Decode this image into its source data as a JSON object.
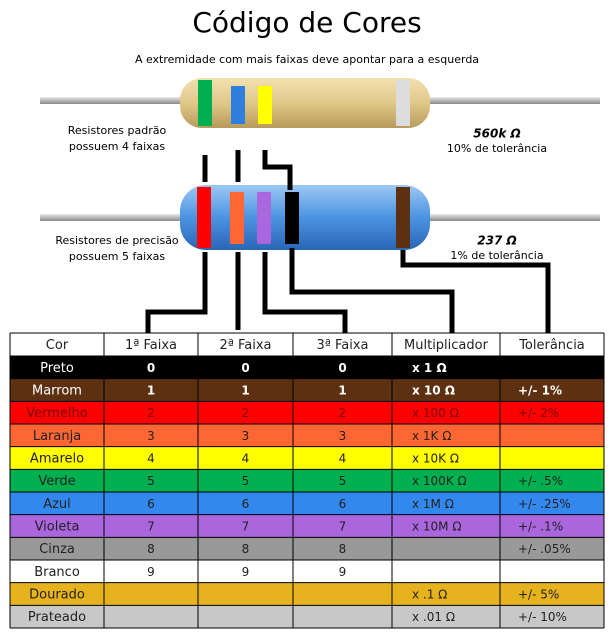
{
  "title": "Código de Cores",
  "subtitle": "A extremidade com mais faixas deve apontar para a esquerda",
  "resistors": [
    {
      "caption": [
        "Resistores padrão",
        "possuem 4 faixas"
      ],
      "value": "560k Ω",
      "tolerance": "10% de tolerância"
    },
    {
      "caption": [
        "Resistores de precisão",
        "possuem 5 faixas"
      ],
      "value": "237 Ω",
      "tolerance": "1% de tolerância"
    }
  ],
  "table": {
    "header": [
      "Cor",
      "1ª Faixa",
      "2ª Faixa",
      "3ª Faixa",
      "Multiplicador",
      "Tolerância"
    ],
    "rows": [
      {
        "color": "#000000",
        "fg": "#ffffff",
        "bold": true,
        "cells": [
          "Preto",
          "0",
          "0",
          "0",
          "x 1 Ω",
          ""
        ]
      },
      {
        "color": "#5c3010",
        "fg": "#ffffff",
        "bold": true,
        "cells": [
          "Marrom",
          "1",
          "1",
          "1",
          "x 10 Ω",
          "+/-  1%"
        ]
      },
      {
        "color": "#ff0000",
        "fg": "#7a0000",
        "bold": false,
        "cells": [
          "Vermelho",
          "2",
          "2",
          "2",
          "x 100 Ω",
          "+/-  2%"
        ]
      },
      {
        "color": "#ff6633",
        "fg": "#222222",
        "bold": false,
        "cells": [
          "Laranja",
          "3",
          "3",
          "3",
          "x 1K Ω",
          ""
        ]
      },
      {
        "color": "#ffff00",
        "fg": "#222222",
        "bold": false,
        "cells": [
          "Amarelo",
          "4",
          "4",
          "4",
          "x 10K Ω",
          ""
        ]
      },
      {
        "color": "#00b050",
        "fg": "#222222",
        "bold": false,
        "cells": [
          "Verde",
          "5",
          "5",
          "5",
          "x 100K Ω",
          "+/-  .5%"
        ]
      },
      {
        "color": "#3388ee",
        "fg": "#222222",
        "bold": false,
        "cells": [
          "Azul",
          "6",
          "6",
          "6",
          "x 1M Ω",
          "+/-  .25%"
        ]
      },
      {
        "color": "#aa66dd",
        "fg": "#222222",
        "bold": false,
        "cells": [
          "Violeta",
          "7",
          "7",
          "7",
          "x 10M Ω",
          "+/-  .1%"
        ]
      },
      {
        "color": "#999999",
        "fg": "#222222",
        "bold": false,
        "cells": [
          "Cinza",
          "8",
          "8",
          "8",
          "",
          "+/-  .05%"
        ]
      },
      {
        "color": "#ffffff",
        "fg": "#222222",
        "bold": false,
        "cells": [
          "Branco",
          "9",
          "9",
          "9",
          "",
          ""
        ]
      },
      {
        "color": "#e6b31e",
        "fg": "#222222",
        "bold": false,
        "cells": [
          "Dourado",
          "",
          "",
          "",
          "x .1 Ω",
          "+/-  5%"
        ]
      },
      {
        "color": "#c8c8c8",
        "fg": "#222222",
        "bold": false,
        "cells": [
          "Prateado",
          "",
          "",
          "",
          "x .01 Ω",
          "+/-  10%"
        ]
      }
    ]
  }
}
